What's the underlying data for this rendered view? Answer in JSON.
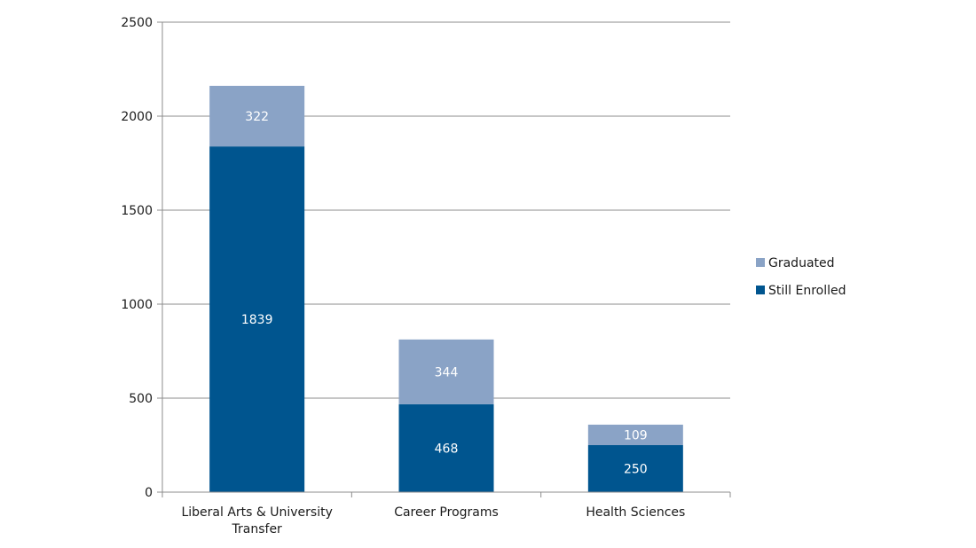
{
  "chart_data": {
    "type": "bar",
    "stacked": true,
    "categories": [
      [
        "Liberal Arts & University",
        "Transfer"
      ],
      [
        "Career Programs"
      ],
      [
        "Health Sciences"
      ]
    ],
    "series": [
      {
        "name": "Still Enrolled",
        "values": [
          1839,
          468,
          250
        ],
        "color": "#00558f"
      },
      {
        "name": "Graduated",
        "values": [
          322,
          344,
          109
        ],
        "color": "#8aa3c6"
      }
    ],
    "ylim": [
      0,
      2500
    ],
    "yticks": [
      0,
      500,
      1000,
      1500,
      2000,
      2500
    ],
    "grid": true,
    "legend_position": "right",
    "legend_order": [
      "Graduated",
      "Still Enrolled"
    ],
    "title": "",
    "xlabel": "",
    "ylabel": ""
  }
}
